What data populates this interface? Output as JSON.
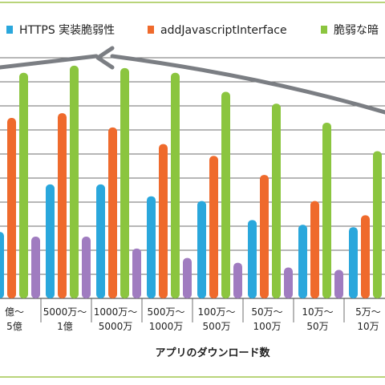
{
  "chart_data": {
    "type": "bar",
    "title": "",
    "xlabel": "アプリのダウンロード数",
    "ylabel": "",
    "ylim": [
      0,
      100
    ],
    "grid": true,
    "legend_position": "top",
    "categories": [
      [
        "億〜",
        "5億"
      ],
      [
        "5000万〜",
        "1億"
      ],
      [
        "1000万〜",
        "5000万"
      ],
      [
        "500万〜",
        "1000万"
      ],
      [
        "100万〜",
        "500万"
      ],
      [
        "50万〜",
        "100万"
      ],
      [
        "10万〜",
        "50万"
      ],
      [
        "5万〜",
        "10万"
      ]
    ],
    "series": [
      {
        "name": "HTTPS 実装脆弱性",
        "color": "#2aa7dc",
        "values": [
          28,
          48,
          48,
          43,
          41,
          33,
          31,
          30
        ]
      },
      {
        "name": "addJavascriptInterface",
        "color": "#ef6a2c",
        "values": [
          76,
          78,
          72,
          65,
          60,
          52,
          41,
          35
        ]
      },
      {
        "name": "脆弱な暗",
        "color": "#8bc53f",
        "values": [
          95,
          98,
          97,
          95,
          87,
          82,
          74,
          62
        ]
      },
      {
        "name": "",
        "color": "#a07cc0",
        "values": [
          26,
          26,
          21,
          17,
          15,
          13,
          12,
          11
        ]
      }
    ]
  }
}
